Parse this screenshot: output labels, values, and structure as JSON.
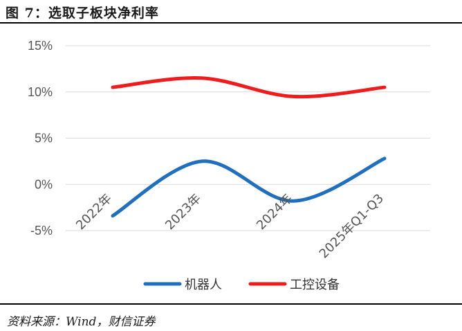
{
  "figure": {
    "title": "图 7：选取子板块净利率",
    "source": "资料来源：Wind，财信证券"
  },
  "chart_data": {
    "type": "line",
    "categories": [
      "2022年",
      "2023年",
      "2024年",
      "2025年Q1-Q3"
    ],
    "series": [
      {
        "name": "机器人",
        "values": [
          -3.4,
          2.5,
          -1.8,
          2.8
        ],
        "color": "#1f6fbf"
      },
      {
        "name": "工控设备",
        "values": [
          10.5,
          11.5,
          9.5,
          10.5
        ],
        "color": "#ee1c1c"
      }
    ],
    "ylim": [
      -5,
      15
    ],
    "yticks": [
      -5,
      0,
      5,
      10,
      15
    ],
    "ytick_labels": [
      "-5%",
      "0%",
      "5%",
      "10%",
      "15%"
    ],
    "grid": true,
    "legend": "bottom",
    "smooth": true
  }
}
